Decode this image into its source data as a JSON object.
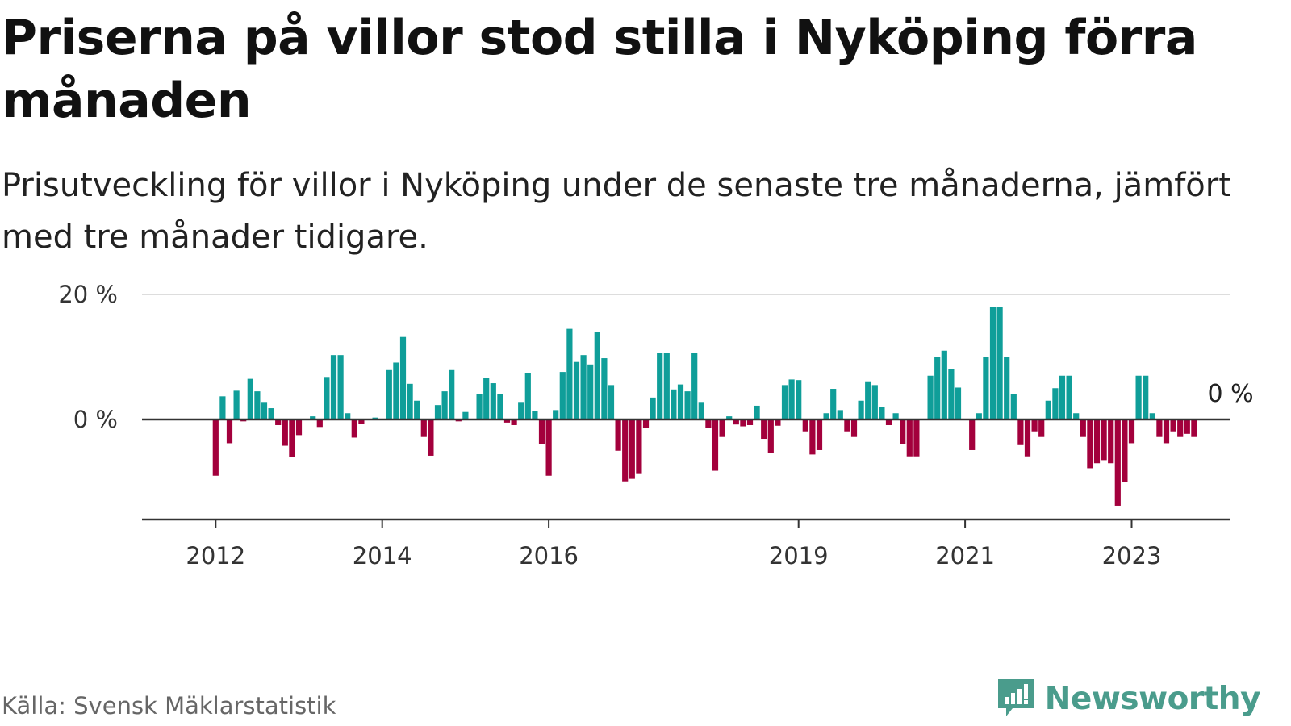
{
  "header": {
    "title": "Priserna på villor stod stilla i Nyköping förra månaden",
    "subtitle": "Prisutveckling för villor i Nyköping under de senaste tre månaderna, jämfört med tre månader tidigare."
  },
  "footer": {
    "source": "Källa: Svensk Mäklarstatistik",
    "brand": "Newsworthy",
    "brand_icon": "newsworthy-chat-bars-icon"
  },
  "colors": {
    "positive": "#0f9e99",
    "negative": "#a3003c",
    "grid": "#dddddd",
    "zero_line": "#333333",
    "brand": "#4a9c8c"
  },
  "chart_data": {
    "type": "bar",
    "title": "Priserna på villor stod stilla i Nyköping förra månaden",
    "subtitle": "Prisutveckling för villor i Nyköping under de senaste tre månaderna, jämfört med tre månader tidigare.",
    "xlabel": "",
    "ylabel": "",
    "ylim": [
      -16,
      20
    ],
    "unit": "%",
    "grid": true,
    "y_ticks": [
      {
        "value": 0,
        "label": "0 %"
      },
      {
        "value": 20,
        "label": "20 %"
      }
    ],
    "x_ticks": [
      {
        "date": "2012-01",
        "label": "2012"
      },
      {
        "date": "2014-01",
        "label": "2014"
      },
      {
        "date": "2016-01",
        "label": "2016"
      },
      {
        "date": "2019-01",
        "label": "2019"
      },
      {
        "date": "2021-01",
        "label": "2021"
      },
      {
        "date": "2023-01",
        "label": "2023"
      }
    ],
    "annotations": [
      {
        "date": "2023-12",
        "text": "0 %"
      }
    ],
    "start_date": "2011-05",
    "values": [
      0,
      0,
      0,
      0,
      0,
      0,
      0,
      0,
      -9,
      3.7,
      -3.8,
      4.6,
      -0.3,
      6.5,
      4.5,
      2.8,
      1.8,
      -0.9,
      -4.2,
      -6,
      -2.5,
      0,
      0.5,
      -1.2,
      6.8,
      10.3,
      10.3,
      1,
      -2.9,
      -0.7,
      0,
      0.3,
      0,
      7.9,
      9.1,
      13.2,
      5.7,
      3,
      -2.8,
      -5.8,
      2.3,
      4.5,
      7.9,
      -0.3,
      1.2,
      0,
      4.1,
      6.6,
      5.8,
      4.1,
      -0.5,
      -0.9,
      2.8,
      7.4,
      1.3,
      -3.9,
      -9,
      1.5,
      7.6,
      14.5,
      9.2,
      10.3,
      8.8,
      14,
      9.8,
      5.5,
      -5,
      -9.9,
      -9.5,
      -8.6,
      -1.3,
      3.5,
      10.6,
      10.6,
      4.8,
      5.6,
      4.5,
      10.7,
      2.8,
      -1.4,
      -8.2,
      -2.8,
      0.5,
      -0.8,
      -1.1,
      -0.9,
      2.2,
      -3.1,
      -5.4,
      -1,
      5.5,
      6.4,
      6.3,
      -1.9,
      -5.6,
      -4.9,
      1,
      4.9,
      1.5,
      -1.9,
      -2.8,
      3,
      6.1,
      5.5,
      2,
      -0.9,
      1,
      -3.9,
      -5.9,
      -5.9,
      0,
      7,
      10,
      11,
      8,
      5.1,
      0,
      -4.9,
      1,
      10,
      18,
      18,
      10,
      4.1,
      -4.1,
      -5.9,
      -1.9,
      -2.8,
      3,
      5,
      7,
      7,
      1,
      -2.8,
      -7.8,
      -7,
      -6.5,
      -7,
      -13.8,
      -10,
      -3.8,
      7,
      7,
      1,
      -2.8,
      -3.8,
      -1.9,
      -2.8,
      -2.3,
      -2.8,
      0
    ]
  }
}
